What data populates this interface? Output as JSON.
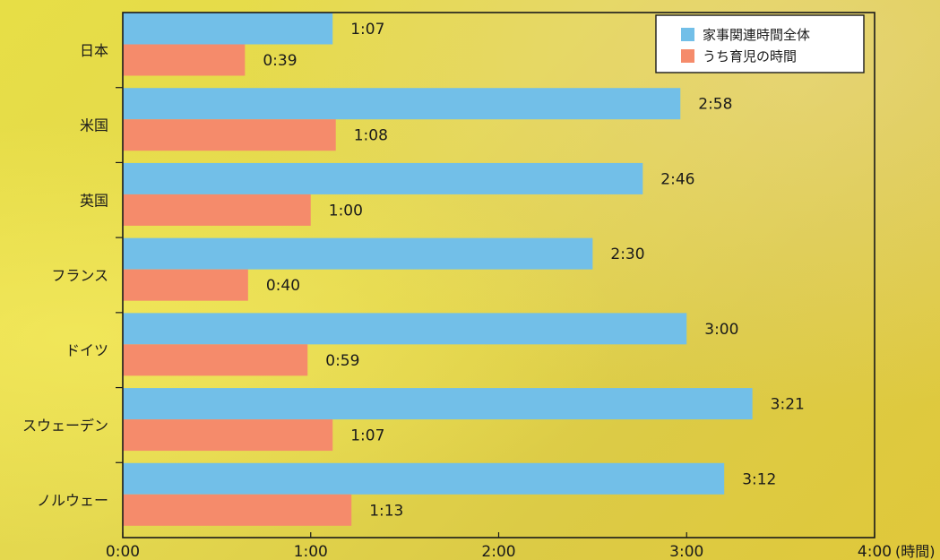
{
  "chart_data": {
    "type": "bar",
    "orientation": "horizontal",
    "categories": [
      "日本",
      "米国",
      "英国",
      "フランス",
      "ドイツ",
      "スウェーデン",
      "ノルウェー"
    ],
    "series": [
      {
        "name": "家事関連時間全体",
        "color": "#72bfe8",
        "values": [
          67,
          178,
          166,
          150,
          180,
          201,
          192
        ],
        "labels": [
          "1:07",
          "2:58",
          "2:46",
          "2:30",
          "3:00",
          "3:21",
          "3:12"
        ]
      },
      {
        "name": "うち育児の時間",
        "color": "#f58b6b",
        "values": [
          39,
          68,
          60,
          40,
          59,
          67,
          73
        ],
        "labels": [
          "0:39",
          "1:08",
          "1:00",
          "0:40",
          "0:59",
          "1:07",
          "1:13"
        ]
      }
    ],
    "xlim": [
      0,
      240
    ],
    "x_ticks": [
      0,
      60,
      120,
      180,
      240
    ],
    "x_tick_labels": [
      "0:00",
      "1:00",
      "2:00",
      "3:00",
      "4:00"
    ],
    "x_unit": "(時間)",
    "legend_position": "top-right",
    "grid": false
  },
  "colors": {
    "axis": "#1a1a1a",
    "bar_total": "#72bfe8",
    "bar_childcare": "#f58b6b"
  }
}
